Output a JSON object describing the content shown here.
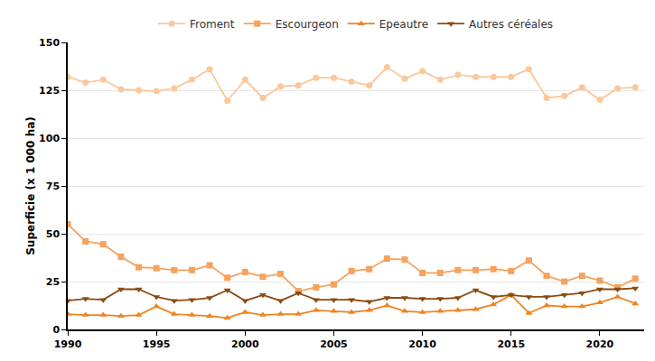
{
  "chart_data": {
    "type": "line",
    "y_label": "Superficie (x 1 000 ha)",
    "x": [
      1990,
      1991,
      1992,
      1993,
      1994,
      1995,
      1996,
      1997,
      1998,
      1999,
      2000,
      2001,
      2002,
      2003,
      2004,
      2005,
      2006,
      2007,
      2008,
      2009,
      2010,
      2011,
      2012,
      2013,
      2014,
      2015,
      2016,
      2017,
      2018,
      2019,
      2020,
      2021,
      2022
    ],
    "series": [
      {
        "name": "Froment",
        "color": "#fbc79c",
        "marker": "circle",
        "values": [
          132,
          129,
          130.5,
          125.5,
          125,
          124.5,
          126,
          130.5,
          136,
          119.5,
          130.5,
          121,
          127,
          127.5,
          131.5,
          131.5,
          129.5,
          127.5,
          137,
          131,
          135,
          130.5,
          133,
          132,
          132,
          132,
          136,
          121,
          122,
          126.5,
          120,
          126,
          126.5
        ]
      },
      {
        "name": "Escourgeon",
        "color": "#f5a25e",
        "marker": "square",
        "values": [
          55,
          46,
          44.5,
          38,
          32.5,
          32,
          31,
          31,
          33.5,
          27,
          30,
          27.5,
          29,
          20,
          22,
          23.5,
          30.5,
          31.5,
          37,
          36.5,
          29.5,
          29.5,
          31,
          31,
          31.5,
          30.5,
          36,
          28,
          25,
          28,
          25.5,
          22,
          26.5
        ]
      },
      {
        "name": "Epeautre",
        "color": "#ef8420",
        "marker": "triangle-up",
        "values": [
          8,
          7.5,
          7.5,
          7,
          7.5,
          12,
          8,
          7.5,
          7,
          6,
          9,
          7.5,
          8,
          8,
          10,
          9.5,
          9,
          10,
          12.5,
          9.5,
          9,
          9.5,
          10,
          10.5,
          13,
          18,
          8.5,
          12.5,
          12,
          12,
          14,
          17,
          13.5
        ]
      },
      {
        "name": "Autres céréales",
        "color": "#8a4b12",
        "marker": "triangle-down",
        "values": [
          15,
          16,
          15.5,
          21,
          21,
          17,
          15,
          15.5,
          16.5,
          20.5,
          15,
          18,
          15,
          19,
          15.5,
          15.5,
          15.5,
          14.5,
          16.5,
          16.5,
          16,
          16,
          16.5,
          20.5,
          17,
          18,
          17,
          17,
          18,
          19,
          21,
          21,
          21.5
        ]
      }
    ],
    "xlim": [
      1990,
      2022.5
    ],
    "xticks": [
      1990,
      1995,
      2000,
      2005,
      2010,
      2015,
      2020
    ],
    "ylim": [
      0,
      150
    ],
    "yticks": [
      0,
      25,
      50,
      75,
      100,
      125,
      150
    ],
    "grid": "y",
    "legend": "top"
  }
}
